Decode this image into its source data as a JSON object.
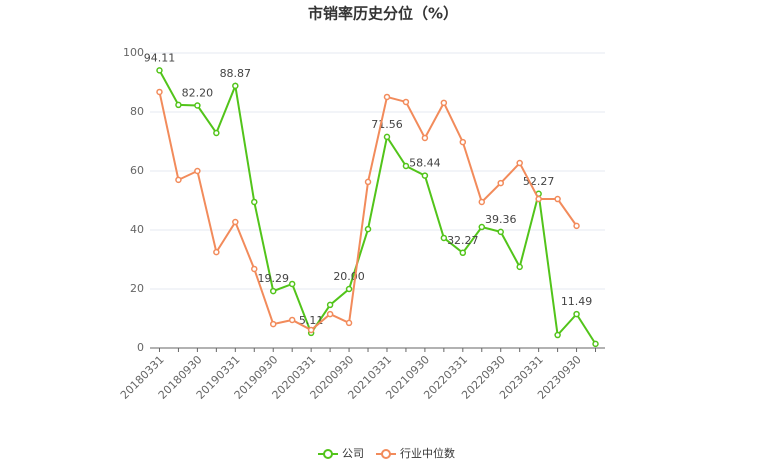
{
  "chart_data": {
    "type": "line",
    "title": "市销率历史分位（%）",
    "categories": [
      "20180331",
      null,
      "20180930",
      null,
      "20190331",
      null,
      "20190930",
      null,
      "20200331",
      null,
      "20200930",
      null,
      "20210331",
      null,
      "20210930",
      null,
      "20220331",
      null,
      "20220930",
      null,
      "20230331",
      null,
      "20230930",
      null
    ],
    "series": [
      {
        "name": "公司",
        "color": "#52c41a",
        "values": [
          94.11,
          82.4,
          82.2,
          72.9,
          88.87,
          49.5,
          19.29,
          21.7,
          5.11,
          14.6,
          20.0,
          40.3,
          71.56,
          61.7,
          58.44,
          37.3,
          32.27,
          41.0,
          39.36,
          27.5,
          52.27,
          4.4,
          11.49,
          1.4
        ],
        "value_labels": [
          "94.11",
          null,
          "82.20",
          null,
          "88.87",
          null,
          "19.29",
          null,
          "5.11",
          null,
          "20.00",
          null,
          "71.56",
          null,
          "58.44",
          null,
          "32.27",
          null,
          "39.36",
          null,
          "52.27",
          null,
          "11.49",
          null
        ]
      },
      {
        "name": "行业中位数",
        "color": "#f28b5b",
        "values": [
          86.8,
          57.0,
          60.0,
          32.5,
          42.7,
          26.8,
          8.1,
          9.5,
          6.1,
          11.5,
          8.5,
          56.3,
          85.1,
          83.4,
          71.2,
          83.1,
          69.8,
          49.5,
          55.9,
          62.7,
          50.5,
          50.5,
          41.4,
          null
        ]
      }
    ],
    "ylim": [
      0,
      100
    ],
    "yticks": [
      0,
      20,
      40,
      60,
      80,
      100
    ],
    "grid": true
  }
}
